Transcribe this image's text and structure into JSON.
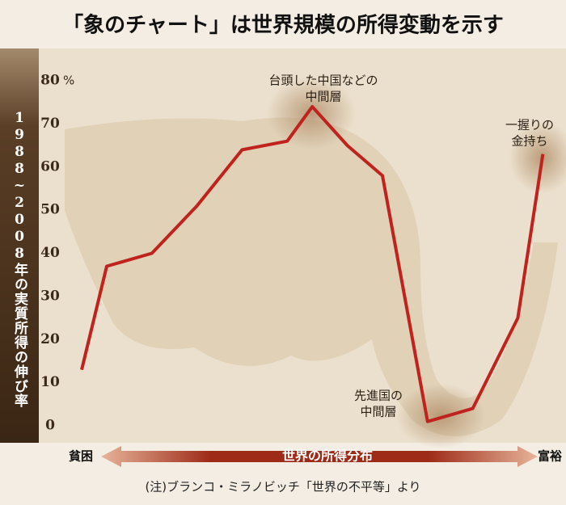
{
  "chart_data": {
    "type": "line",
    "title": "「象のチャート」は世界規模の所得変動を示す",
    "y_label": "1988~2008年の実質所得の伸び率",
    "y_unit": "%",
    "x_label": "世界の所得分布",
    "x_left_label": "貧困",
    "x_right_label": "富裕",
    "note": "(注)ブランコ・ミラノビッチ「世界の不平等」より",
    "annotations": [
      {
        "lines": [
          "台頭した中国などの",
          "中間層"
        ]
      },
      {
        "lines": [
          "先進国の",
          "中間層"
        ]
      },
      {
        "lines": [
          "一握りの",
          "金持ち"
        ]
      }
    ],
    "x": [
      5,
      10,
      13,
      19,
      28,
      37,
      46,
      51,
      58,
      65,
      74,
      83,
      92,
      97
    ],
    "values": [
      13,
      37,
      38,
      40,
      51,
      64,
      66,
      74,
      65,
      58,
      1,
      4,
      25,
      63
    ],
    "color": "#c0221e",
    "xlim": [
      0,
      100
    ],
    "ylim": [
      0,
      80
    ],
    "yticks": [
      0,
      10,
      20,
      30,
      40,
      50,
      60,
      70,
      80
    ]
  }
}
